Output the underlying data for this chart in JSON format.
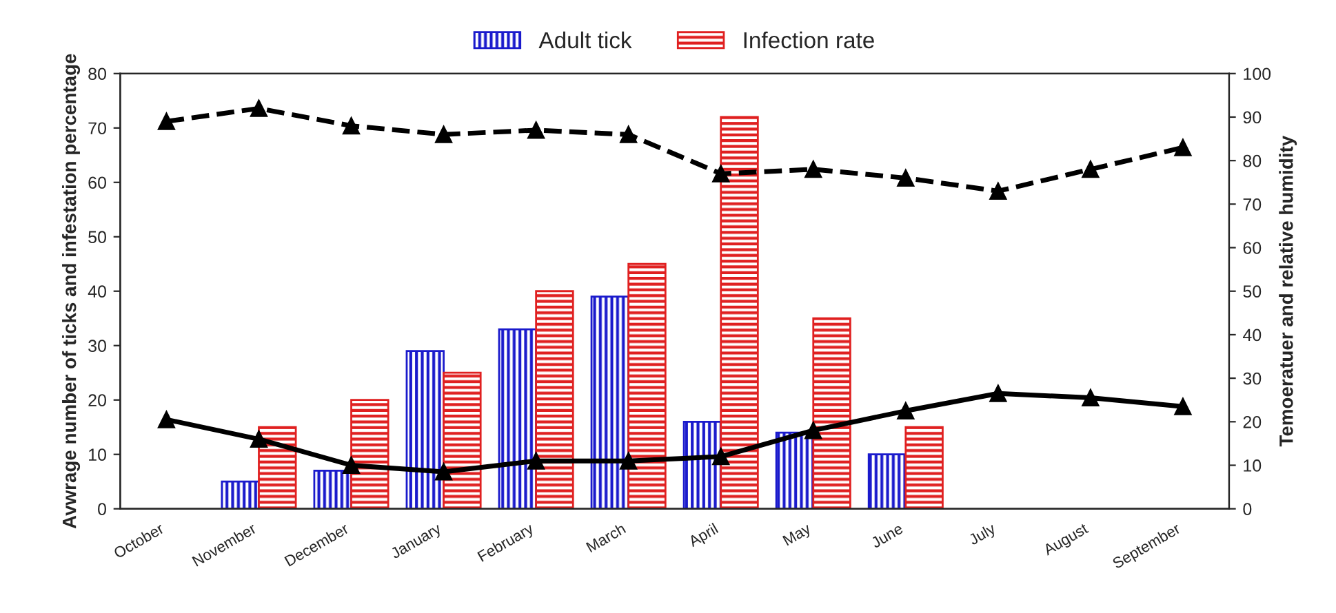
{
  "chart_data": {
    "type": "bar",
    "categories": [
      "October",
      "November",
      "December",
      "January",
      "February",
      "March",
      "April",
      "May",
      "June",
      "July",
      "August",
      "September"
    ],
    "ylabel": "Avwrage number of ticks and infestation percentage",
    "y2label": "Temoeratuer and relative humidity",
    "ylim": [
      0,
      80
    ],
    "yticks": [
      0,
      10,
      20,
      30,
      40,
      50,
      60,
      70,
      80
    ],
    "y2lim": [
      0,
      100
    ],
    "y2ticks": [
      0,
      10,
      20,
      30,
      40,
      50,
      60,
      70,
      80,
      90,
      100
    ],
    "legend": "top",
    "grid": false,
    "series": [
      {
        "name": "Adult tick",
        "color": "#1a1acc",
        "values": [
          null,
          5,
          7,
          29,
          33,
          39,
          16,
          14,
          10,
          null,
          null,
          null
        ]
      },
      {
        "name": "Infection rate",
        "color": "#e02020",
        "values": [
          null,
          15,
          20,
          25,
          40,
          45,
          72,
          35,
          15,
          null,
          null,
          null
        ]
      },
      {
        "type": "line",
        "axis": "y2",
        "color": "#000000",
        "marker": "triangle",
        "line_style": "dashed",
        "values": [
          89,
          92,
          88,
          86,
          87,
          86,
          77,
          78,
          76,
          73,
          78,
          83
        ]
      },
      {
        "type": "line",
        "axis": "y2",
        "color": "#000000",
        "marker": "triangle",
        "line_style": "solid",
        "values": [
          20.5,
          16,
          10,
          8.5,
          11,
          11,
          12,
          18,
          22.5,
          26.5,
          25.5,
          23.5
        ]
      }
    ]
  }
}
